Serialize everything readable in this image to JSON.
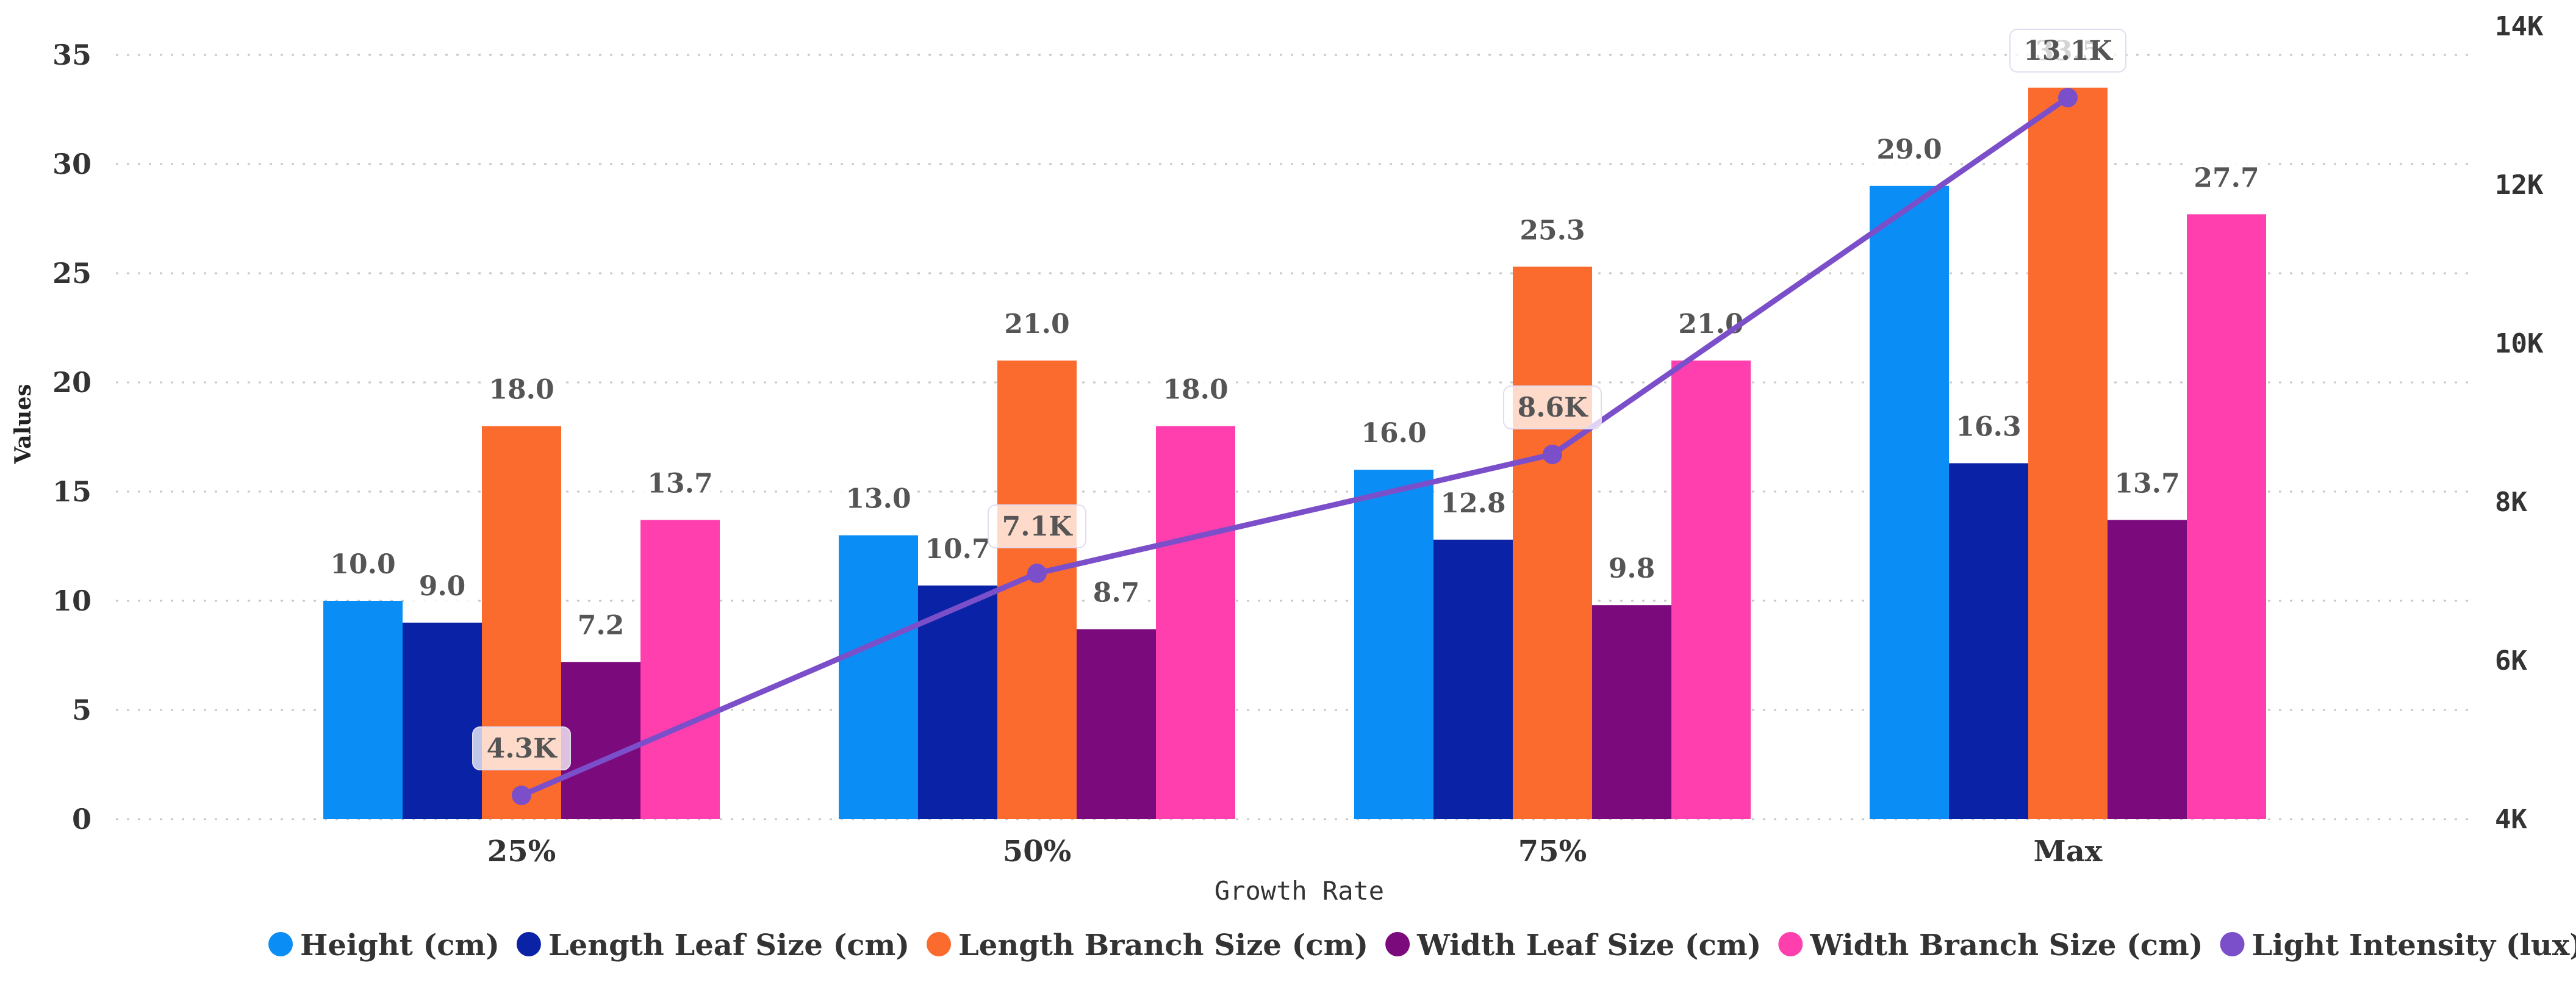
{
  "chart_data": {
    "type": "bar",
    "categories": [
      "25%",
      "50%",
      "75%",
      "Max"
    ],
    "xlabel": "Growth Rate",
    "ylabel": "Values",
    "ylim": [
      0,
      35
    ],
    "yticks": [
      "0",
      "5",
      "10",
      "15",
      "20",
      "25",
      "30",
      "35"
    ],
    "y2lim": [
      4000,
      14000
    ],
    "y2ticks": [
      "4K",
      "6K",
      "8K",
      "10K",
      "12K",
      "14K"
    ],
    "grid": "horizontal dotted",
    "legend_position": "bottom",
    "series": [
      {
        "name": "Height (cm)",
        "type": "bar",
        "color": "#0a8ef5",
        "values": [
          10.0,
          13.0,
          16.0,
          29.0
        ],
        "labels": [
          "10.0",
          "13.0",
          "16.0",
          "29.0"
        ]
      },
      {
        "name": "Length Leaf Size (cm)",
        "type": "bar",
        "color": "#0a22a5",
        "values": [
          9.0,
          10.7,
          12.8,
          16.3
        ],
        "labels": [
          "9.0",
          "10.7",
          "12.8",
          "16.3"
        ]
      },
      {
        "name": "Length Branch Size (cm)",
        "type": "bar",
        "color": "#fb6b2e",
        "values": [
          18.0,
          21.0,
          25.3,
          33.5
        ],
        "labels": [
          "18.0",
          "21.0",
          "25.3",
          "33.5"
        ]
      },
      {
        "name": "Width Leaf Size (cm)",
        "type": "bar",
        "color": "#7b0a7d",
        "values": [
          7.2,
          8.7,
          9.8,
          13.7
        ],
        "labels": [
          "7.2",
          "8.7",
          "9.8",
          "13.7"
        ]
      },
      {
        "name": "Width Branch Size (cm)",
        "type": "bar",
        "color": "#fe3fad",
        "values": [
          13.7,
          18.0,
          21.0,
          27.7
        ],
        "labels": [
          "13.7",
          "18.0",
          "21.0",
          "27.7"
        ]
      },
      {
        "name": "Light Intensity (lux)",
        "type": "line",
        "axis": "right",
        "color": "#7b4fc9",
        "values": [
          4300,
          7100,
          8600,
          13100
        ],
        "labels": [
          "4.3K",
          "7.1K",
          "8.6K",
          "13.1K"
        ]
      }
    ]
  }
}
